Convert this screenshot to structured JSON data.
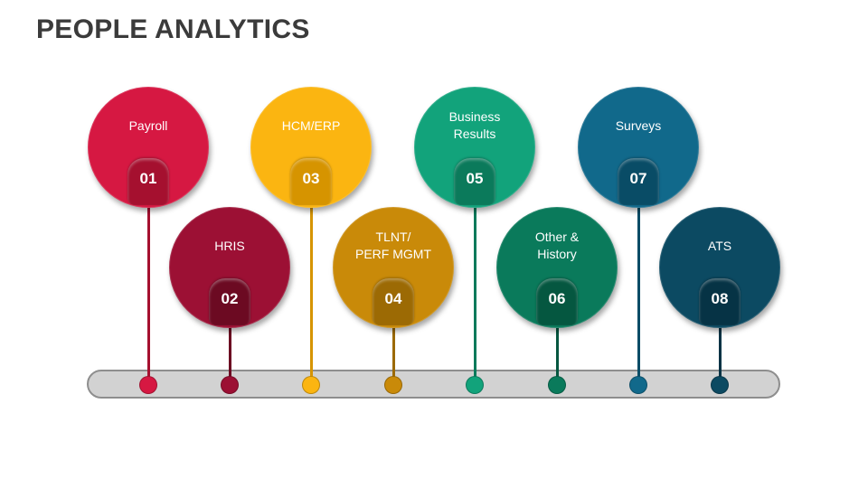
{
  "title": "PEOPLE ANALYTICS",
  "items": [
    {
      "label": "Payroll",
      "number": "01",
      "color": "#d61842",
      "tab_color": "#a5102f"
    },
    {
      "label": "HRIS",
      "number": "02",
      "color": "#9c1034",
      "tab_color": "#6c0a22"
    },
    {
      "label": "HCM/ERP",
      "number": "03",
      "color": "#fbb511",
      "tab_color": "#d69400"
    },
    {
      "label": "TLNT/\nPERF MGMT",
      "number": "04",
      "color": "#c98a09",
      "tab_color": "#9c6a04"
    },
    {
      "label": "Business\nResults",
      "number": "05",
      "color": "#12a37b",
      "tab_color": "#0b7a5b"
    },
    {
      "label": "Other &\nHistory",
      "number": "06",
      "color": "#0a7a5b",
      "tab_color": "#055740"
    },
    {
      "label": "Surveys",
      "number": "07",
      "color": "#11698b",
      "tab_color": "#094c66"
    },
    {
      "label": "ATS",
      "number": "08",
      "color": "#0c4a62",
      "tab_color": "#063345"
    }
  ]
}
